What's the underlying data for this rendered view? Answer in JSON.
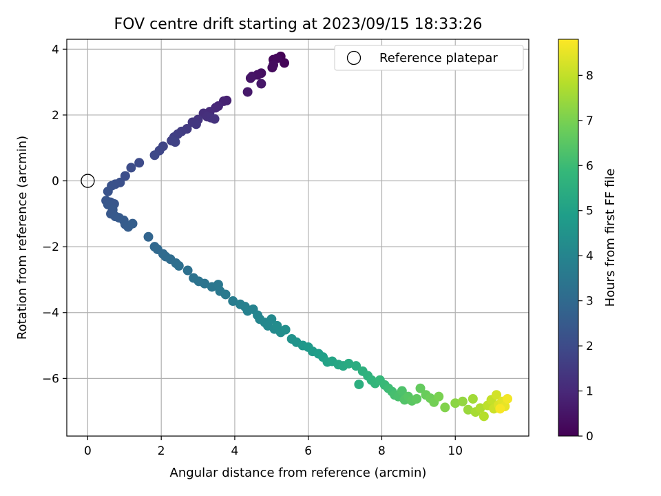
{
  "chart_data": {
    "type": "scatter",
    "title": "FOV centre drift starting at 2023/09/15 18:33:26",
    "xlabel": "Angular distance from reference (arcmin)",
    "ylabel": "Rotation from reference (arcmin)",
    "xlim": [
      -0.57,
      12
    ],
    "ylim": [
      -7.75,
      4.3
    ],
    "xticks": [
      0,
      2,
      4,
      6,
      8,
      10
    ],
    "yticks": [
      -6,
      -4,
      -2,
      0,
      2,
      4
    ],
    "grid": true,
    "legend": {
      "placement": "top-right",
      "entries": [
        {
          "label": "Reference platepar",
          "marker": "open-circle"
        }
      ]
    },
    "reference_point": {
      "x": 0,
      "y": 0
    },
    "colorbar": {
      "label": "Hours from first FF file",
      "range": [
        0,
        8.8
      ],
      "ticks": [
        0,
        1,
        2,
        3,
        4,
        5,
        6,
        7,
        8
      ],
      "colormap": "viridis"
    },
    "series": [
      {
        "points": [
          [
            5.25,
            3.78,
            0.05
          ],
          [
            5.35,
            3.58,
            0.1
          ],
          [
            5.05,
            3.68,
            0.15
          ],
          [
            5.15,
            3.72,
            0.2
          ],
          [
            5.02,
            3.44,
            0.25
          ],
          [
            5.05,
            3.52,
            0.3
          ],
          [
            4.72,
            3.27,
            0.35
          ],
          [
            4.62,
            3.22,
            0.4
          ],
          [
            4.47,
            3.17,
            0.45
          ],
          [
            4.43,
            3.12,
            0.5
          ],
          [
            4.72,
            2.95,
            0.55
          ],
          [
            4.35,
            2.7,
            0.6
          ],
          [
            3.78,
            2.44,
            0.8
          ],
          [
            3.7,
            2.42,
            0.85
          ],
          [
            3.55,
            2.27,
            0.95
          ],
          [
            3.48,
            2.22,
            1.0
          ],
          [
            3.32,
            2.1,
            1.1
          ],
          [
            3.15,
            2.05,
            1.15
          ],
          [
            3.25,
            1.95,
            1.2
          ],
          [
            3.35,
            1.92,
            1.25
          ],
          [
            3.45,
            1.88,
            1.28
          ],
          [
            3.0,
            1.86,
            1.32
          ],
          [
            2.85,
            1.78,
            1.4
          ],
          [
            2.95,
            1.72,
            1.42
          ],
          [
            2.7,
            1.58,
            1.5
          ],
          [
            2.55,
            1.5,
            1.56
          ],
          [
            2.45,
            1.42,
            1.6
          ],
          [
            2.35,
            1.33,
            1.65
          ],
          [
            2.28,
            1.22,
            1.7
          ],
          [
            2.38,
            1.18,
            1.72
          ],
          [
            2.05,
            1.05,
            1.8
          ],
          [
            1.95,
            0.92,
            1.85
          ],
          [
            1.82,
            0.78,
            1.92
          ],
          [
            1.4,
            0.55,
            2.0
          ],
          [
            1.18,
            0.4,
            2.05
          ],
          [
            1.02,
            0.15,
            2.1
          ],
          [
            0.88,
            -0.05,
            2.15
          ],
          [
            0.75,
            -0.1,
            2.18
          ],
          [
            0.65,
            -0.15,
            2.22
          ],
          [
            0.55,
            -0.32,
            2.25
          ],
          [
            0.5,
            -0.6,
            2.3
          ],
          [
            0.62,
            -0.65,
            2.32
          ],
          [
            0.72,
            -0.7,
            2.35
          ],
          [
            0.55,
            -0.72,
            2.38
          ],
          [
            0.68,
            -0.88,
            2.4
          ],
          [
            0.63,
            -1.0,
            2.42
          ],
          [
            0.75,
            -1.08,
            2.45
          ],
          [
            0.85,
            -1.12,
            2.48
          ],
          [
            0.98,
            -1.2,
            2.52
          ],
          [
            1.02,
            -1.32,
            2.55
          ],
          [
            1.1,
            -1.4,
            2.58
          ],
          [
            1.22,
            -1.3,
            2.62
          ],
          [
            1.65,
            -1.7,
            2.85
          ],
          [
            1.82,
            -2.0,
            2.92
          ],
          [
            1.9,
            -2.08,
            2.96
          ],
          [
            2.05,
            -2.22,
            3.02
          ],
          [
            2.12,
            -2.3,
            3.05
          ],
          [
            2.25,
            -2.38,
            3.1
          ],
          [
            2.4,
            -2.5,
            3.15
          ],
          [
            2.48,
            -2.58,
            3.18
          ],
          [
            2.72,
            -2.72,
            3.25
          ],
          [
            2.88,
            -2.95,
            3.3
          ],
          [
            3.02,
            -3.05,
            3.35
          ],
          [
            3.18,
            -3.12,
            3.4
          ],
          [
            3.38,
            -3.22,
            3.45
          ],
          [
            3.55,
            -3.15,
            3.5
          ],
          [
            3.6,
            -3.35,
            3.55
          ],
          [
            3.75,
            -3.45,
            3.62
          ],
          [
            3.95,
            -3.65,
            3.7
          ],
          [
            4.15,
            -3.75,
            3.78
          ],
          [
            4.28,
            -3.82,
            3.82
          ],
          [
            4.35,
            -3.95,
            3.87
          ],
          [
            4.5,
            -3.9,
            3.92
          ],
          [
            4.62,
            -4.08,
            3.98
          ],
          [
            4.68,
            -4.2,
            4.03
          ],
          [
            4.82,
            -4.3,
            4.08
          ],
          [
            4.9,
            -4.4,
            4.12
          ],
          [
            5.0,
            -4.2,
            4.16
          ],
          [
            5.08,
            -4.5,
            4.2
          ],
          [
            5.15,
            -4.4,
            4.25
          ],
          [
            5.25,
            -4.6,
            4.3
          ],
          [
            5.38,
            -4.52,
            4.38
          ],
          [
            5.55,
            -4.8,
            4.48
          ],
          [
            5.68,
            -4.9,
            4.55
          ],
          [
            5.85,
            -5.0,
            4.65
          ],
          [
            6.0,
            -5.05,
            4.72
          ],
          [
            6.12,
            -5.18,
            4.8
          ],
          [
            6.28,
            -5.25,
            4.88
          ],
          [
            6.4,
            -5.35,
            4.95
          ],
          [
            6.52,
            -5.5,
            5.05
          ],
          [
            6.65,
            -5.48,
            5.12
          ],
          [
            6.82,
            -5.58,
            5.2
          ],
          [
            6.95,
            -5.62,
            5.28
          ],
          [
            7.1,
            -5.55,
            5.35
          ],
          [
            7.3,
            -5.62,
            5.42
          ],
          [
            7.38,
            -6.18,
            5.5
          ],
          [
            7.48,
            -5.78,
            5.55
          ],
          [
            7.62,
            -5.92,
            5.62
          ],
          [
            7.72,
            -6.05,
            5.7
          ],
          [
            7.82,
            -6.15,
            5.78
          ],
          [
            7.95,
            -6.05,
            5.85
          ],
          [
            8.08,
            -6.2,
            5.92
          ],
          [
            8.18,
            -6.3,
            6.0
          ],
          [
            8.28,
            -6.4,
            6.08
          ],
          [
            8.35,
            -6.5,
            6.15
          ],
          [
            8.45,
            -6.55,
            6.22
          ],
          [
            8.55,
            -6.38,
            6.3
          ],
          [
            8.62,
            -6.65,
            6.38
          ],
          [
            8.72,
            -6.55,
            6.45
          ],
          [
            8.82,
            -6.68,
            6.52
          ],
          [
            8.95,
            -6.62,
            6.6
          ],
          [
            9.05,
            -6.3,
            6.68
          ],
          [
            9.2,
            -6.5,
            6.75
          ],
          [
            9.32,
            -6.6,
            6.82
          ],
          [
            9.42,
            -6.72,
            6.9
          ],
          [
            9.55,
            -6.55,
            7.0
          ],
          [
            9.72,
            -6.88,
            7.1
          ],
          [
            10.0,
            -6.75,
            7.25
          ],
          [
            10.2,
            -6.7,
            7.35
          ],
          [
            10.35,
            -6.95,
            7.45
          ],
          [
            10.48,
            -6.62,
            7.55
          ],
          [
            10.55,
            -7.02,
            7.62
          ],
          [
            10.68,
            -6.9,
            7.72
          ],
          [
            10.78,
            -7.15,
            7.82
          ],
          [
            10.88,
            -6.82,
            7.92
          ],
          [
            10.98,
            -6.65,
            8.02
          ],
          [
            11.05,
            -6.92,
            8.12
          ],
          [
            11.12,
            -6.5,
            8.22
          ],
          [
            11.18,
            -6.8,
            8.32
          ],
          [
            11.28,
            -6.7,
            8.42
          ],
          [
            11.35,
            -6.85,
            8.52
          ],
          [
            11.42,
            -6.62,
            8.65
          ],
          [
            11.22,
            -6.92,
            8.72
          ]
        ]
      }
    ]
  }
}
